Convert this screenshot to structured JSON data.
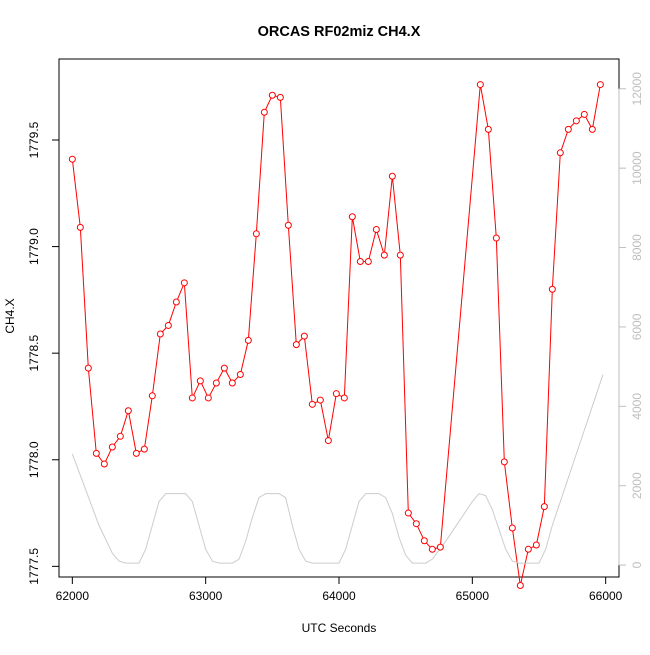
{
  "chart_data": {
    "type": "line",
    "title": "ORCAS RF02miz CH4.X",
    "xlabel": "UTC Seconds",
    "ylabel": "CH4.X",
    "xlim": [
      61900,
      66100
    ],
    "ylim": [
      1777.45,
      1779.88
    ],
    "x_ticks": [
      62000,
      63000,
      64000,
      65000,
      66000
    ],
    "y_ticks": [
      1777.5,
      1778.0,
      1778.5,
      1779.0,
      1779.5
    ],
    "y_tick_labels": [
      "1777.5",
      "1778.0",
      "1778.5",
      "1779.0",
      "1779.5"
    ],
    "y2lim": [
      -300,
      12750
    ],
    "y2_ticks": [
      0,
      2000,
      4000,
      6000,
      8000,
      10000,
      12000
    ],
    "grid": false,
    "series": [
      {
        "axis": "left",
        "color": "#ff0000",
        "marker": "open-circle",
        "x": [
          62000,
          62060,
          62120,
          62180,
          62240,
          62300,
          62360,
          62420,
          62480,
          62540,
          62600,
          62660,
          62720,
          62780,
          62840,
          62900,
          62960,
          63020,
          63080,
          63140,
          63200,
          63260,
          63320,
          63380,
          63440,
          63500,
          63560,
          63620,
          63680,
          63740,
          63800,
          63860,
          63920,
          63980,
          64040,
          64100,
          64160,
          64220,
          64280,
          64340,
          64400,
          64460,
          64520,
          64580,
          64640,
          64700,
          64760,
          65060,
          65120,
          65180,
          65240,
          65300,
          65360,
          65420,
          65480,
          65540,
          65600,
          65660,
          65720,
          65780,
          65840,
          65900,
          65960
        ],
        "values": [
          1779.41,
          1779.09,
          1778.43,
          1778.03,
          1777.98,
          1778.06,
          1778.11,
          1778.23,
          1778.03,
          1778.05,
          1778.3,
          1778.59,
          1778.63,
          1778.74,
          1778.83,
          1778.29,
          1778.37,
          1778.29,
          1778.36,
          1778.43,
          1778.36,
          1778.4,
          1778.56,
          1779.06,
          1779.63,
          1779.71,
          1779.7,
          1779.1,
          1778.54,
          1778.58,
          1778.26,
          1778.28,
          1778.09,
          1778.31,
          1778.29,
          1779.14,
          1778.93,
          1778.93,
          1779.08,
          1778.96,
          1779.33,
          1778.96,
          1777.75,
          1777.7,
          1777.62,
          1777.58,
          1777.59,
          1779.76,
          1779.55,
          1779.04,
          1777.99,
          1777.68,
          1777.41,
          1777.58,
          1777.6,
          1777.78,
          1778.8,
          1779.44,
          1779.55,
          1779.59,
          1779.62,
          1779.55,
          1779.76
        ]
      },
      {
        "axis": "right",
        "color": "#cccccc",
        "marker": "none",
        "x": [
          62000,
          62100,
          62200,
          62300,
          62350,
          62400,
          62500,
          62550,
          62600,
          62650,
          62700,
          62750,
          62850,
          62900,
          62950,
          63000,
          63050,
          63100,
          63200,
          63250,
          63300,
          63350,
          63400,
          63450,
          63550,
          63600,
          63650,
          63700,
          63750,
          63800,
          63900,
          63950,
          64000,
          64050,
          64100,
          64150,
          64200,
          64300,
          64350,
          64400,
          64450,
          64500,
          64550,
          64650,
          64700,
          64800,
          64900,
          65000,
          65050,
          65100,
          65150,
          65200,
          65250,
          65300,
          65350,
          65400,
          65500,
          65550,
          65600,
          65700,
          65800,
          65900,
          65980
        ],
        "values": [
          2800,
          1900,
          1000,
          300,
          100,
          50,
          50,
          400,
          1000,
          1600,
          1800,
          1800,
          1800,
          1600,
          1000,
          400,
          100,
          50,
          50,
          150,
          600,
          1200,
          1700,
          1800,
          1800,
          1700,
          1000,
          400,
          100,
          50,
          50,
          50,
          50,
          400,
          1000,
          1600,
          1800,
          1800,
          1700,
          1300,
          700,
          250,
          50,
          50,
          150,
          600,
          1100,
          1600,
          1800,
          1750,
          1400,
          900,
          400,
          100,
          50,
          50,
          50,
          400,
          1000,
          2000,
          3000,
          4000,
          4800
        ]
      }
    ]
  }
}
